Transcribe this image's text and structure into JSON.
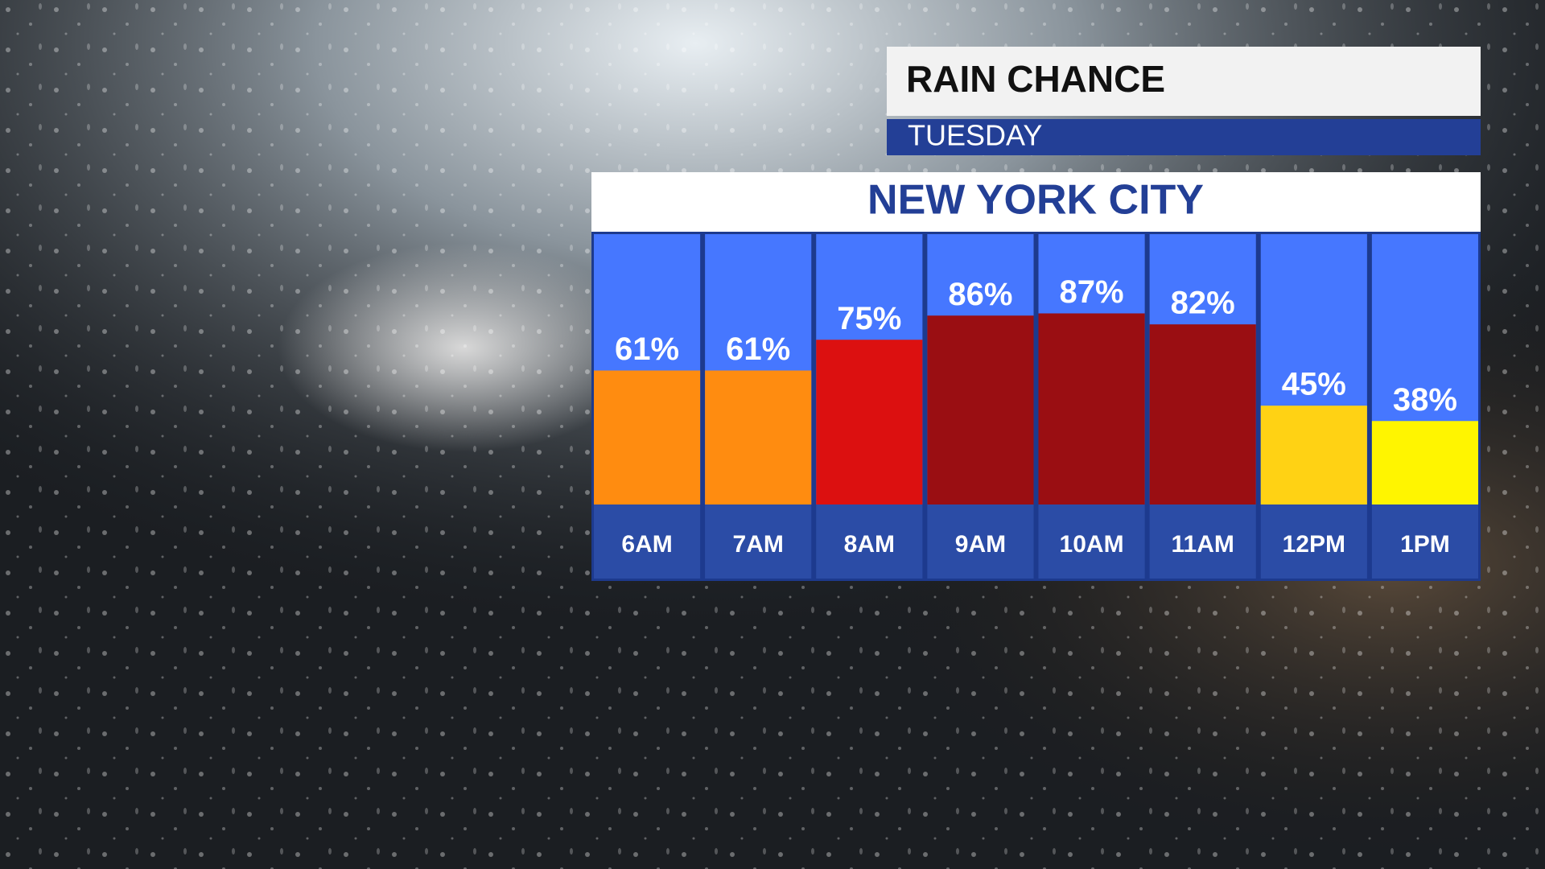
{
  "chart_data": {
    "type": "bar",
    "title": "RAIN CHANCE",
    "subtitle": "TUESDAY",
    "location": "NEW YORK CITY",
    "categories": [
      "6AM",
      "7AM",
      "8AM",
      "9AM",
      "10AM",
      "11AM",
      "12PM",
      "1PM"
    ],
    "values": [
      61,
      61,
      75,
      86,
      87,
      82,
      45,
      38
    ],
    "value_labels": [
      "61%",
      "61%",
      "75%",
      "86%",
      "87%",
      "82%",
      "45%",
      "38%"
    ],
    "colors": [
      "#ff8c10",
      "#ff8c10",
      "#dc1010",
      "#9a0e12",
      "#9a0e12",
      "#9a0e12",
      "#ffd214",
      "#fff500"
    ],
    "ylim": [
      0,
      100
    ]
  }
}
